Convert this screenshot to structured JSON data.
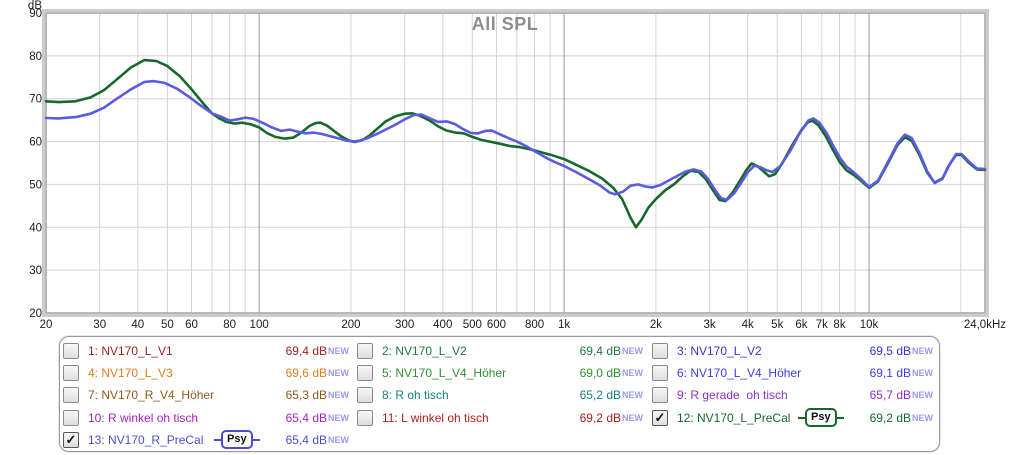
{
  "chart_data": {
    "type": "line",
    "title": "All SPL",
    "ylabel": "dB",
    "x_scale": "log",
    "xlim": [
      20,
      24000
    ],
    "ylim": [
      20,
      90
    ],
    "grid": true,
    "y_ticks": [
      90,
      80,
      70,
      60,
      50,
      40,
      30,
      20
    ],
    "x_ticks": [
      [
        20,
        "20"
      ],
      [
        30,
        "30"
      ],
      [
        40,
        "40"
      ],
      [
        50,
        "50"
      ],
      [
        60,
        "60"
      ],
      [
        80,
        "80"
      ],
      [
        100,
        "100"
      ],
      [
        200,
        "200"
      ],
      [
        300,
        "300"
      ],
      [
        400,
        "400"
      ],
      [
        500,
        "500"
      ],
      [
        600,
        "600"
      ],
      [
        800,
        "800"
      ],
      [
        1000,
        "1k"
      ],
      [
        2000,
        "2k"
      ],
      [
        3000,
        "3k"
      ],
      [
        4000,
        "4k"
      ],
      [
        5000,
        "5k"
      ],
      [
        6000,
        "6k"
      ],
      [
        7000,
        "7k"
      ],
      [
        8000,
        "8k"
      ],
      [
        10000,
        "10k"
      ],
      [
        24000,
        "24,0kHz"
      ]
    ],
    "major_gridlines_hz": [
      100,
      1000,
      10000
    ],
    "series": [
      {
        "name": "12: NV170_L_PreCal",
        "color": "#17682b",
        "points": [
          [
            20,
            69.4
          ],
          [
            22,
            69.2
          ],
          [
            25,
            69.4
          ],
          [
            28,
            70.3
          ],
          [
            31,
            72.0
          ],
          [
            34,
            74.4
          ],
          [
            38,
            77.3
          ],
          [
            42,
            79.0
          ],
          [
            46,
            78.8
          ],
          [
            50,
            77.6
          ],
          [
            55,
            75.2
          ],
          [
            60,
            72.2
          ],
          [
            65,
            69.2
          ],
          [
            70,
            66.6
          ],
          [
            74,
            65.4
          ],
          [
            78,
            64.6
          ],
          [
            83,
            64.2
          ],
          [
            88,
            64.4
          ],
          [
            94,
            64.0
          ],
          [
            100,
            63.3
          ],
          [
            106,
            62.0
          ],
          [
            113,
            61.1
          ],
          [
            121,
            60.7
          ],
          [
            129,
            60.9
          ],
          [
            137,
            62.0
          ],
          [
            146,
            63.6
          ],
          [
            153,
            64.3
          ],
          [
            159,
            64.4
          ],
          [
            167,
            63.7
          ],
          [
            176,
            62.5
          ],
          [
            186,
            61.2
          ],
          [
            196,
            60.3
          ],
          [
            206,
            59.9
          ],
          [
            217,
            60.3
          ],
          [
            230,
            61.4
          ],
          [
            244,
            63.0
          ],
          [
            260,
            64.7
          ],
          [
            280,
            65.9
          ],
          [
            300,
            66.5
          ],
          [
            318,
            66.6
          ],
          [
            338,
            66.0
          ],
          [
            360,
            65.0
          ],
          [
            385,
            63.6
          ],
          [
            410,
            62.6
          ],
          [
            440,
            62.1
          ],
          [
            470,
            61.9
          ],
          [
            500,
            61.1
          ],
          [
            535,
            60.4
          ],
          [
            570,
            60.0
          ],
          [
            615,
            59.5
          ],
          [
            660,
            59.0
          ],
          [
            715,
            58.7
          ],
          [
            775,
            58.2
          ],
          [
            840,
            57.5
          ],
          [
            915,
            56.8
          ],
          [
            1000,
            55.9
          ],
          [
            1100,
            54.5
          ],
          [
            1210,
            53.1
          ],
          [
            1330,
            51.4
          ],
          [
            1450,
            49.2
          ],
          [
            1550,
            46.6
          ],
          [
            1650,
            42.3
          ],
          [
            1720,
            40.0
          ],
          [
            1800,
            41.9
          ],
          [
            1890,
            44.6
          ],
          [
            2000,
            46.6
          ],
          [
            2150,
            48.7
          ],
          [
            2300,
            50.1
          ],
          [
            2450,
            51.9
          ],
          [
            2600,
            53.2
          ],
          [
            2760,
            52.9
          ],
          [
            2920,
            51.2
          ],
          [
            3080,
            48.6
          ],
          [
            3230,
            46.4
          ],
          [
            3380,
            46.1
          ],
          [
            3560,
            48.0
          ],
          [
            3760,
            50.7
          ],
          [
            3960,
            53.4
          ],
          [
            4120,
            54.9
          ],
          [
            4300,
            54.3
          ],
          [
            4500,
            53.1
          ],
          [
            4700,
            51.9
          ],
          [
            4920,
            52.4
          ],
          [
            5200,
            55.0
          ],
          [
            5600,
            59.2
          ],
          [
            6000,
            62.7
          ],
          [
            6300,
            64.5
          ],
          [
            6520,
            64.9
          ],
          [
            6820,
            63.8
          ],
          [
            7220,
            61.2
          ],
          [
            7620,
            58.0
          ],
          [
            8020,
            55.2
          ],
          [
            8430,
            53.3
          ],
          [
            8880,
            52.3
          ],
          [
            9400,
            50.9
          ],
          [
            10000,
            49.2
          ],
          [
            10700,
            50.7
          ],
          [
            11500,
            54.8
          ],
          [
            12400,
            59.2
          ],
          [
            13100,
            61.0
          ],
          [
            13800,
            60.2
          ],
          [
            14600,
            57.0
          ],
          [
            15500,
            52.8
          ],
          [
            16400,
            50.4
          ],
          [
            17400,
            51.4
          ],
          [
            18300,
            54.5
          ],
          [
            19300,
            56.9
          ],
          [
            20100,
            56.9
          ],
          [
            21200,
            55.1
          ],
          [
            22600,
            53.5
          ],
          [
            24000,
            53.4
          ]
        ]
      },
      {
        "name": "13: NV170_R_PreCal",
        "color": "#5b5be0",
        "points": [
          [
            20,
            65.5
          ],
          [
            22,
            65.4
          ],
          [
            25,
            65.7
          ],
          [
            28,
            66.5
          ],
          [
            31,
            67.9
          ],
          [
            34,
            69.9
          ],
          [
            38,
            72.2
          ],
          [
            42,
            73.9
          ],
          [
            45,
            74.1
          ],
          [
            49,
            73.7
          ],
          [
            54,
            72.3
          ],
          [
            59,
            70.4
          ],
          [
            64,
            68.5
          ],
          [
            70,
            66.6
          ],
          [
            75,
            65.8
          ],
          [
            80,
            64.9
          ],
          [
            85,
            65.2
          ],
          [
            90,
            65.6
          ],
          [
            96,
            65.3
          ],
          [
            103,
            64.3
          ],
          [
            110,
            63.3
          ],
          [
            118,
            62.5
          ],
          [
            126,
            62.8
          ],
          [
            134,
            62.3
          ],
          [
            142,
            61.9
          ],
          [
            151,
            62.1
          ],
          [
            160,
            61.8
          ],
          [
            170,
            61.3
          ],
          [
            181,
            60.8
          ],
          [
            192,
            60.3
          ],
          [
            203,
            60.0
          ],
          [
            214,
            60.2
          ],
          [
            227,
            60.8
          ],
          [
            242,
            61.7
          ],
          [
            260,
            62.8
          ],
          [
            281,
            64.0
          ],
          [
            302,
            65.3
          ],
          [
            322,
            66.2
          ],
          [
            341,
            66.3
          ],
          [
            363,
            65.4
          ],
          [
            386,
            64.6
          ],
          [
            412,
            64.7
          ],
          [
            438,
            64.1
          ],
          [
            466,
            62.9
          ],
          [
            495,
            62.0
          ],
          [
            522,
            61.9
          ],
          [
            552,
            62.5
          ],
          [
            578,
            62.6
          ],
          [
            612,
            61.8
          ],
          [
            652,
            60.9
          ],
          [
            700,
            60.0
          ],
          [
            752,
            58.9
          ],
          [
            808,
            57.6
          ],
          [
            868,
            56.3
          ],
          [
            932,
            55.2
          ],
          [
            1000,
            54.3
          ],
          [
            1100,
            52.8
          ],
          [
            1210,
            51.2
          ],
          [
            1310,
            49.8
          ],
          [
            1410,
            48.1
          ],
          [
            1470,
            47.7
          ],
          [
            1560,
            48.3
          ],
          [
            1650,
            49.7
          ],
          [
            1750,
            50.0
          ],
          [
            1850,
            49.5
          ],
          [
            1950,
            49.3
          ],
          [
            2060,
            49.8
          ],
          [
            2200,
            50.9
          ],
          [
            2350,
            52.0
          ],
          [
            2500,
            53.0
          ],
          [
            2660,
            53.5
          ],
          [
            2820,
            53.0
          ],
          [
            2970,
            51.2
          ],
          [
            3120,
            48.8
          ],
          [
            3270,
            46.8
          ],
          [
            3420,
            46.4
          ],
          [
            3610,
            47.9
          ],
          [
            3810,
            50.4
          ],
          [
            4010,
            52.9
          ],
          [
            4210,
            54.4
          ],
          [
            4410,
            54.0
          ],
          [
            4610,
            53.3
          ],
          [
            4820,
            52.9
          ],
          [
            5120,
            54.3
          ],
          [
            5520,
            57.9
          ],
          [
            5920,
            61.9
          ],
          [
            6320,
            64.9
          ],
          [
            6560,
            65.4
          ],
          [
            6860,
            64.5
          ],
          [
            7260,
            62.0
          ],
          [
            7660,
            58.8
          ],
          [
            8060,
            56.0
          ],
          [
            8460,
            54.1
          ],
          [
            8920,
            52.8
          ],
          [
            9440,
            51.2
          ],
          [
            10000,
            49.4
          ],
          [
            10700,
            50.9
          ],
          [
            11500,
            55.1
          ],
          [
            12400,
            59.6
          ],
          [
            13100,
            61.6
          ],
          [
            13800,
            60.8
          ],
          [
            14600,
            57.5
          ],
          [
            15500,
            53.1
          ],
          [
            16400,
            50.3
          ],
          [
            17400,
            51.3
          ],
          [
            18300,
            54.4
          ],
          [
            19300,
            57.1
          ],
          [
            20100,
            57.1
          ],
          [
            21200,
            55.4
          ],
          [
            22600,
            53.7
          ],
          [
            24000,
            53.6
          ]
        ]
      }
    ]
  },
  "legend": {
    "psy_label": "Psy",
    "new_tag": "NEW",
    "new_color": "#9a9aff",
    "columns": [
      {
        "cells": [
          {
            "id": "1",
            "label": "1: NV170_L_V1",
            "value": "69,4 dB",
            "color": "#9e1f1f",
            "checked": false,
            "psy": false
          },
          {
            "id": "4",
            "label": "4: NV170_L_V3",
            "value": "69,6 dB",
            "color": "#e07d1f",
            "checked": false,
            "psy": false
          },
          {
            "id": "7",
            "label": "7: NV170_R_V4_Höher",
            "value": "65,3 dB",
            "color": "#8f5c1a",
            "checked": false,
            "psy": false
          },
          {
            "id": "10",
            "label": "10: R winkel oh tisch",
            "value": "65,4 dB",
            "color": "#aa22bb",
            "checked": false,
            "psy": false
          },
          {
            "id": "13",
            "label": "13: NV170_R_PreCal",
            "value": "65,4 dB",
            "color": "#4d4dd2",
            "checked": true,
            "psy": true
          }
        ]
      },
      {
        "cells": [
          {
            "id": "2",
            "label": "2: NV170_L_V2",
            "value": "69,4 dB",
            "color": "#1d7a40",
            "checked": false,
            "psy": false
          },
          {
            "id": "5",
            "label": "5: NV170_L_V4_Höher",
            "value": "69,0 dB",
            "color": "#2f9032",
            "checked": false,
            "psy": false
          },
          {
            "id": "8",
            "label": "8: R oh tisch",
            "value": "65,2 dB",
            "color": "#17807c",
            "checked": false,
            "psy": false
          },
          {
            "id": "11",
            "label": "11: L winkel oh tisch",
            "value": "69,2 dB",
            "color": "#b01c1c",
            "checked": false,
            "psy": false
          }
        ]
      },
      {
        "cells": [
          {
            "id": "3",
            "label": "3: NV170_L_V2",
            "value": "69,5 dB",
            "color": "#3434d6",
            "checked": false,
            "psy": false
          },
          {
            "id": "6",
            "label": "6: NV170_L_V4_Höher",
            "value": "69,1 dB",
            "color": "#3d3de0",
            "checked": false,
            "psy": false
          },
          {
            "id": "9",
            "label": "9: R gerade  oh tisch",
            "value": "65,7 dB",
            "color": "#8c30cc",
            "checked": false,
            "psy": false
          },
          {
            "id": "12",
            "label": "12: NV170_L_PreCal",
            "value": "69,2 dB",
            "color": "#17682b",
            "checked": true,
            "psy": true
          }
        ]
      }
    ]
  }
}
